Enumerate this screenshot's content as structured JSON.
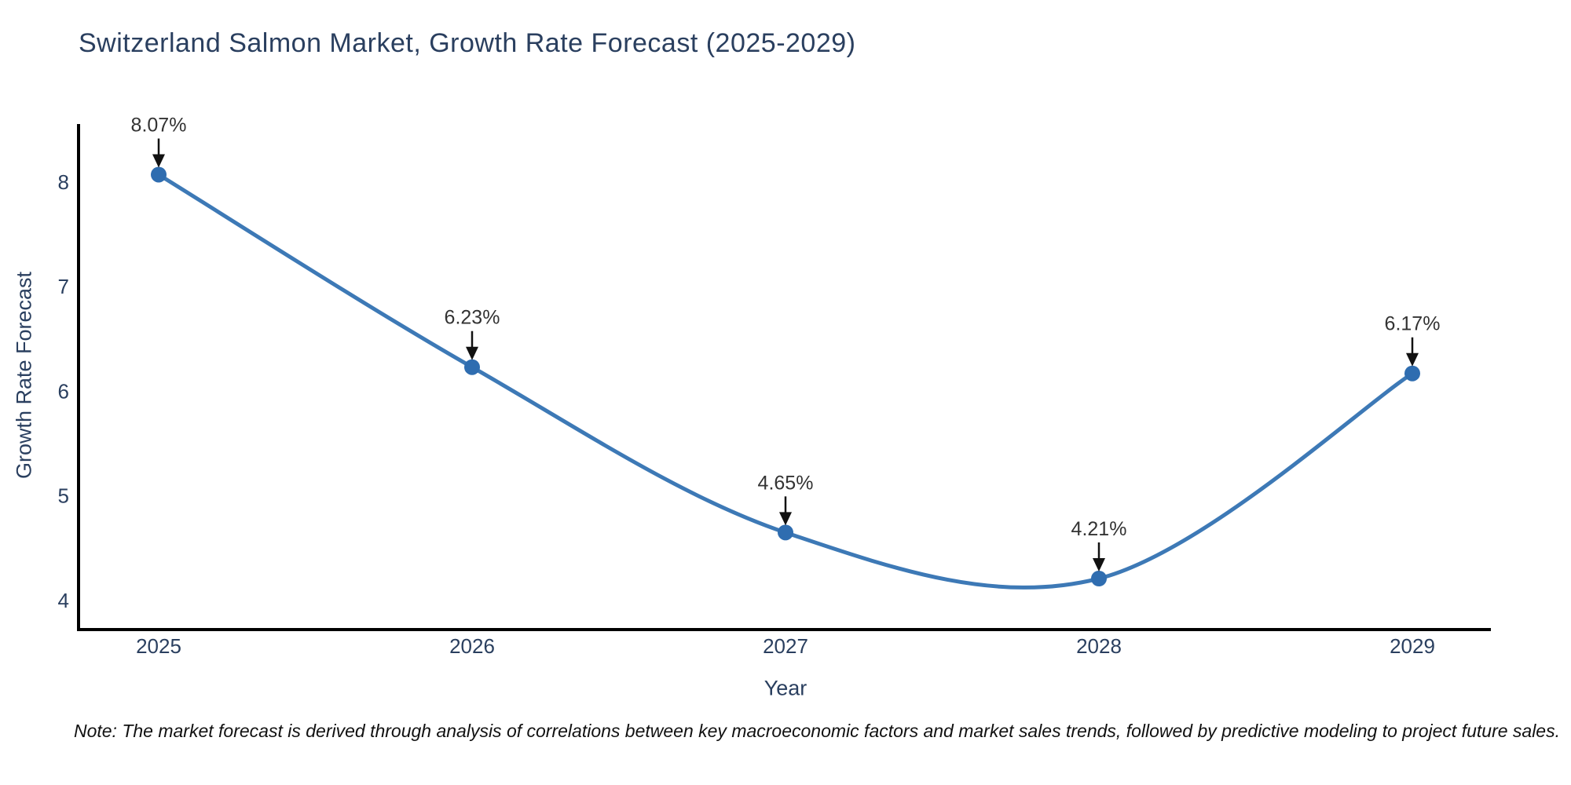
{
  "note": "Note: The market forecast is derived through analysis of correlations between key macroeconomic factors and market sales trends, followed by predictive modeling to project future sales.",
  "chart_data": {
    "type": "line",
    "title": "Switzerland Salmon Market, Growth Rate Forecast (2025-2029)",
    "xlabel": "Year",
    "ylabel": "Growth Rate Forecast",
    "categories": [
      "2025",
      "2026",
      "2027",
      "2028",
      "2029"
    ],
    "series": [
      {
        "name": "Growth Rate Forecast",
        "values": [
          8.07,
          6.23,
          4.65,
          4.21,
          6.17
        ],
        "data_labels": [
          "8.07%",
          "6.23%",
          "4.65%",
          "4.21%",
          "6.17%"
        ]
      }
    ],
    "y_ticks": [
      4,
      5,
      6,
      7,
      8
    ],
    "ylim": [
      3.72,
      8.55
    ],
    "line_shape": "spline",
    "grid": false,
    "legend_position": "none",
    "colors": {
      "line": "#3d79b6",
      "marker": "#2f6db0",
      "axis": "#000000",
      "tick_text": "#2a3f5f",
      "annotation_text": "#333333",
      "arrow": "#111111"
    }
  }
}
